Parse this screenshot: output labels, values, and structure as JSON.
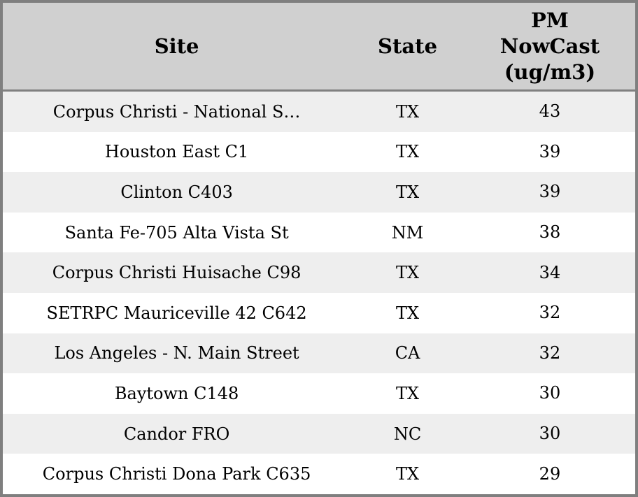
{
  "colors": {
    "header_bg": "#d0d0d0",
    "header_separator": "#808080",
    "outer_border": "#7f7f7f",
    "row_alt_bg": "#eeeeee",
    "row_bg": "#ffffff",
    "text": "#000000"
  },
  "table": {
    "headers": [
      {
        "label": "Site"
      },
      {
        "label": "State"
      },
      {
        "label": "PM\nNowCast\n(ug/m3)"
      }
    ],
    "rows": [
      {
        "site": "Corpus Christi - National S…",
        "state": "TX",
        "pm": "43"
      },
      {
        "site": "Houston East C1",
        "state": "TX",
        "pm": "39"
      },
      {
        "site": "Clinton C403",
        "state": "TX",
        "pm": "39"
      },
      {
        "site": "Santa Fe-705 Alta Vista St",
        "state": "NM",
        "pm": "38"
      },
      {
        "site": "Corpus Christi Huisache C98",
        "state": "TX",
        "pm": "34"
      },
      {
        "site": "SETRPC Mauriceville 42 C642",
        "state": "TX",
        "pm": "32"
      },
      {
        "site": "Los Angeles - N. Main Street",
        "state": "CA",
        "pm": "32"
      },
      {
        "site": "Baytown C148",
        "state": "TX",
        "pm": "30"
      },
      {
        "site": "Candor FRO",
        "state": "NC",
        "pm": "30"
      },
      {
        "site": "Corpus Christi Dona Park C635",
        "state": "TX",
        "pm": "29"
      }
    ]
  },
  "chart_data": {
    "type": "table",
    "title": "",
    "columns": [
      "Site",
      "State",
      "PM NowCast (ug/m3)"
    ],
    "rows": [
      [
        "Corpus Christi - National S…",
        "TX",
        43
      ],
      [
        "Houston East C1",
        "TX",
        39
      ],
      [
        "Clinton C403",
        "TX",
        39
      ],
      [
        "Santa Fe-705 Alta Vista St",
        "NM",
        38
      ],
      [
        "Corpus Christi Huisache C98",
        "TX",
        34
      ],
      [
        "SETRPC Mauriceville 42 C642",
        "TX",
        32
      ],
      [
        "Los Angeles - N. Main Street",
        "CA",
        32
      ],
      [
        "Baytown C148",
        "TX",
        30
      ],
      [
        "Candor FRO",
        "NC",
        30
      ],
      [
        "Corpus Christi Dona Park C635",
        "TX",
        29
      ]
    ]
  }
}
